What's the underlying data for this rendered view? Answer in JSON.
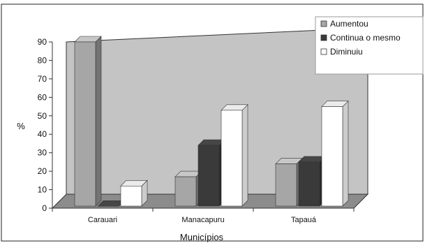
{
  "chart_data": {
    "type": "bar",
    "title": "",
    "xlabel": "Municípios",
    "ylabel": "%",
    "ylim": [
      0,
      90
    ],
    "yticks": [
      0,
      10,
      20,
      30,
      40,
      50,
      60,
      70,
      80,
      90
    ],
    "categories": [
      "Carauari",
      "Manacapuru",
      "Tapauá"
    ],
    "series": [
      {
        "name": "Aumentou",
        "values": [
          90,
          17,
          24
        ],
        "color": "#a6a6a6"
      },
      {
        "name": "Continua o mesmo",
        "values": [
          1,
          34,
          25
        ],
        "color": "#3a3a3a"
      },
      {
        "name": "Diminuiu",
        "values": [
          12,
          53,
          55
        ],
        "color": "#ffffff"
      }
    ],
    "legend": "top-right",
    "grid": false,
    "style": "3d",
    "colors": {
      "wall": "#c4c4c4",
      "floor": "#8c8c8c",
      "frame": "#222222"
    }
  }
}
